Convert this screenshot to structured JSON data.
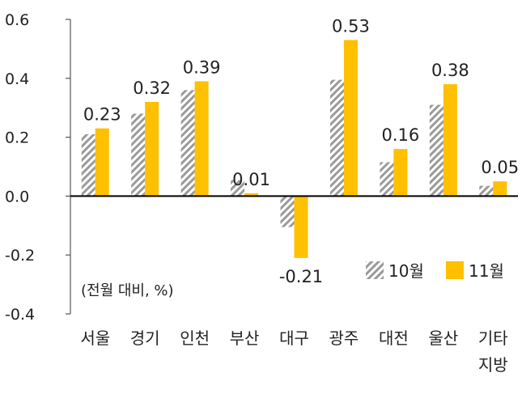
{
  "chart_data": {
    "type": "bar",
    "categories": [
      "서울",
      "경기",
      "인천",
      "부산",
      "대구",
      "광주",
      "대전",
      "울산",
      "기타\n지방"
    ],
    "series": [
      {
        "name": "10월",
        "values": [
          0.21,
          0.28,
          0.36,
          0.055,
          -0.105,
          0.395,
          0.115,
          0.31,
          0.035
        ],
        "pattern": "diagonal-hatch",
        "color": "#9a9a9a"
      },
      {
        "name": "11월",
        "values": [
          0.23,
          0.32,
          0.39,
          0.01,
          -0.21,
          0.53,
          0.16,
          0.38,
          0.05
        ],
        "color": "#ffc000"
      }
    ],
    "data_labels": [
      "0.23",
      "0.32",
      "0.39",
      "0.01",
      "-0.21",
      "0.53",
      "0.16",
      "0.38",
      "0.05"
    ],
    "y_ticks": [
      "0.6",
      "0.4",
      "0.2",
      "0.0",
      "-0.2",
      "-0.4"
    ],
    "ylim": [
      -0.4,
      0.6
    ],
    "note": "(전월 대비, %)",
    "legend_position": "lower-right",
    "grid": false
  }
}
